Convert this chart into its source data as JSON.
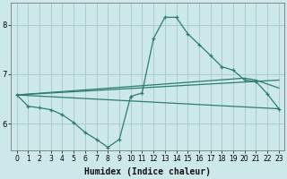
{
  "xlabel": "Humidex (Indice chaleur)",
  "bg_color": "#cce8e8",
  "grid_color": "#aacccc",
  "line_color": "#2d7d6e",
  "xlim": [
    -0.5,
    23.5
  ],
  "ylim": [
    5.45,
    8.45
  ],
  "xticks": [
    0,
    1,
    2,
    3,
    4,
    5,
    6,
    7,
    8,
    9,
    10,
    11,
    12,
    13,
    14,
    15,
    16,
    17,
    18,
    19,
    20,
    21,
    22,
    23
  ],
  "yticks": [
    6,
    7,
    8
  ],
  "line1_x": [
    0,
    1,
    2,
    3,
    4,
    5,
    6,
    7,
    8,
    9,
    10,
    11,
    12,
    13,
    14,
    15,
    16,
    17,
    18,
    19,
    20,
    21,
    22,
    23
  ],
  "line1_y": [
    6.58,
    6.35,
    6.32,
    6.28,
    6.18,
    6.02,
    5.82,
    5.68,
    5.52,
    5.68,
    6.55,
    6.62,
    7.72,
    8.15,
    8.15,
    7.82,
    7.6,
    7.38,
    7.15,
    7.08,
    6.88,
    6.85,
    6.6,
    6.3
  ],
  "line2_x": [
    0,
    23
  ],
  "line2_y": [
    6.58,
    6.3
  ],
  "line3_x": [
    0,
    23
  ],
  "line3_y": [
    6.58,
    6.88
  ],
  "line4_x": [
    0,
    20,
    21,
    23
  ],
  "line4_y": [
    6.58,
    6.92,
    6.88,
    6.72
  ]
}
